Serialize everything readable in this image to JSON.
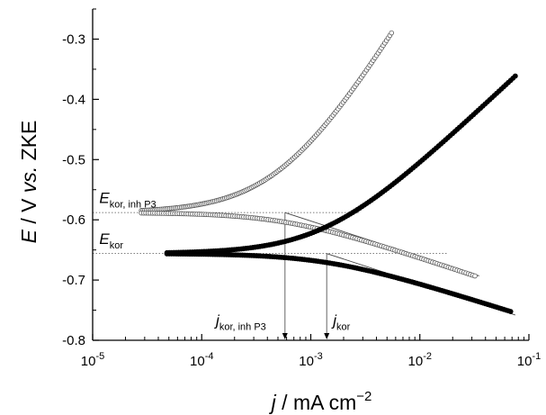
{
  "chart_data": {
    "type": "scatter",
    "title": "",
    "xlabel": {
      "italic": "j",
      "rest": "  /  mA cm",
      "sup": "−2"
    },
    "ylabel": {
      "italic": "E",
      "mid": "  /  V ",
      "italic2": "vs.",
      "rest": " ZKE"
    },
    "x_scale": "log",
    "xlim": [
      1e-05,
      0.1
    ],
    "ylim": [
      -0.8,
      -0.25
    ],
    "x_ticks": [
      {
        "v": 1e-05,
        "base": "10",
        "exp": "-5"
      },
      {
        "v": 0.0001,
        "base": "10",
        "exp": "-4"
      },
      {
        "v": 0.001,
        "base": "10",
        "exp": "-3"
      },
      {
        "v": 0.01,
        "base": "10",
        "exp": "-2"
      },
      {
        "v": 0.1,
        "base": "10",
        "exp": "-1"
      }
    ],
    "y_ticks": [
      -0.8,
      -0.7,
      -0.6,
      -0.5,
      -0.4,
      -0.3
    ],
    "y_tick_labels": [
      "-0.8",
      "-0.7",
      "-0.6",
      "-0.5",
      "-0.4",
      "-0.3"
    ],
    "series": [
      {
        "style": "open",
        "ecorr": -0.588,
        "jcorr": 0.00058,
        "x_start": 2.8e-05,
        "anodic": {
          "x_end": 0.0055,
          "y_end": -0.298
        },
        "cathodic": {
          "x_end": 0.032,
          "y_end": -0.693
        }
      },
      {
        "style": "filled",
        "ecorr": -0.656,
        "jcorr": 0.0014,
        "x_start": 4.8e-05,
        "anodic": {
          "x_end": 0.075,
          "y_end": -0.362
        },
        "cathodic": {
          "x_end": 0.068,
          "y_end": -0.752
        }
      }
    ],
    "tafel_lines": [
      {
        "x1": 0.00058,
        "y1": -0.588,
        "x2": 0.035,
        "y2": -0.693
      },
      {
        "x1": 0.0014,
        "y1": -0.656,
        "x2": 0.075,
        "y2": -0.758
      }
    ],
    "reference_lines": [
      {
        "y": -0.588,
        "x1": 1e-05,
        "x2": 0.0028
      },
      {
        "y": -0.656,
        "x1": 1e-05,
        "x2": 0.018
      }
    ],
    "annotations": [
      {
        "key": "e_inh",
        "main": "E",
        "sub": "kor, inh P3",
        "x": 1.15e-05,
        "y": -0.572
      },
      {
        "key": "e_kor",
        "main": "E",
        "sub": "kor",
        "x": 1.15e-05,
        "y": -0.64
      },
      {
        "key": "j_inh",
        "main": "j",
        "sub": "kor, inh P3",
        "x": 0.000135,
        "y": -0.775
      },
      {
        "key": "j_kor",
        "main": "j",
        "sub": "kor",
        "x": 0.0016,
        "y": -0.775
      }
    ],
    "arrows": [
      {
        "x": 0.00058,
        "y_from": -0.588,
        "y_to": -0.8
      },
      {
        "x": 0.0014,
        "y_from": -0.656,
        "y_to": -0.8
      }
    ]
  }
}
